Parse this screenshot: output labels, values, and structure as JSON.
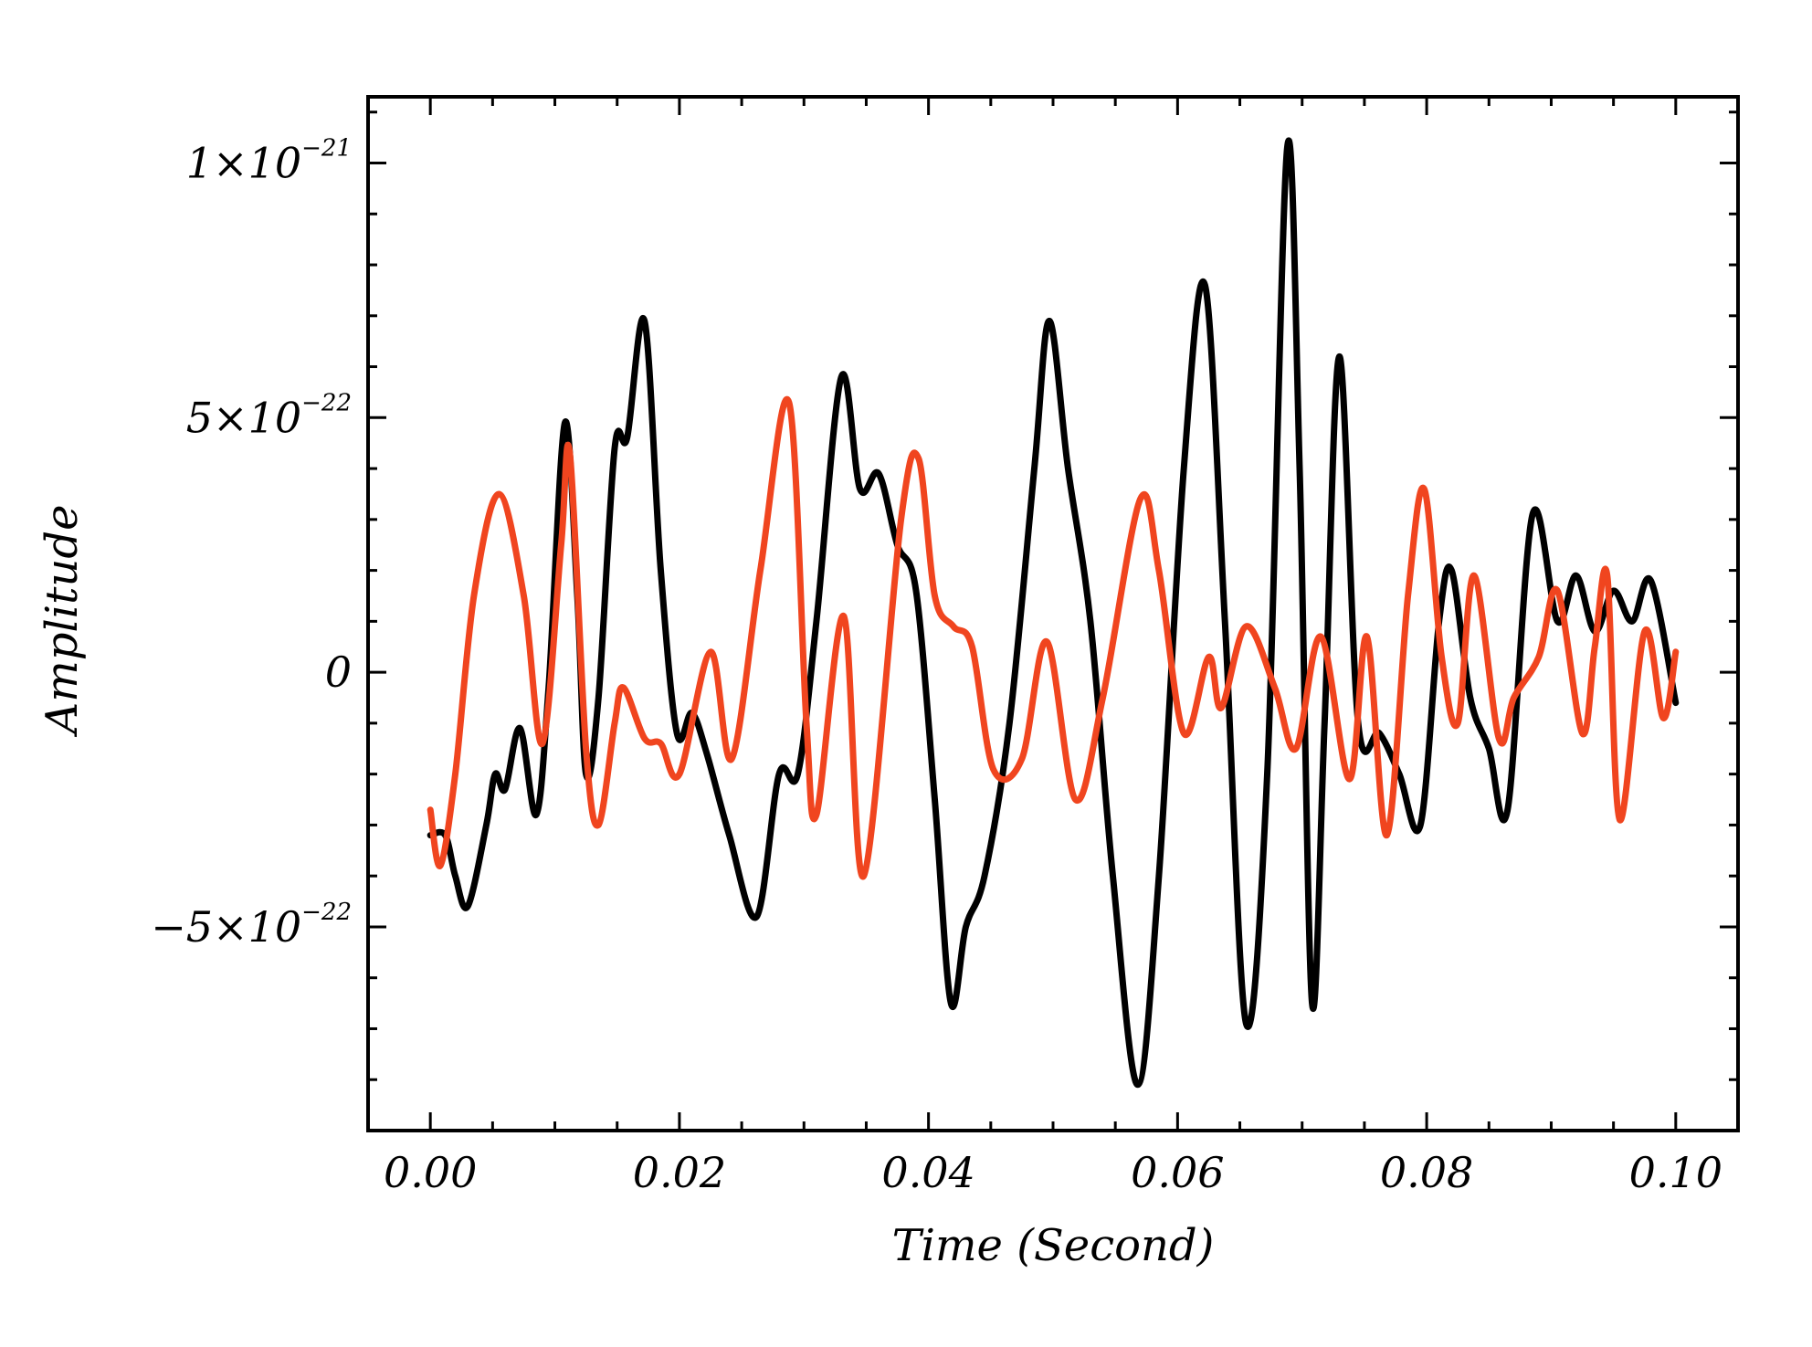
{
  "chart_data": {
    "type": "line",
    "title": "",
    "xlabel": "Time (Second)",
    "ylabel": "Amplitude",
    "xlim": [
      -0.005,
      0.105
    ],
    "ylim": [
      -9e-22,
      1.13e-21
    ],
    "x_ticks": [
      0.0,
      0.02,
      0.04,
      0.06,
      0.08,
      0.1
    ],
    "x_tick_labels": [
      "0.00",
      "0.02",
      "0.04",
      "0.06",
      "0.08",
      "0.10"
    ],
    "y_ticks": [
      {
        "value": 1e-21,
        "mantissa": "1×10",
        "exponent": "−21"
      },
      {
        "value": 5e-22,
        "mantissa": "5×10",
        "exponent": "−22"
      },
      {
        "value": 0,
        "mantissa": "0",
        "exponent": ""
      },
      {
        "value": -5e-22,
        "mantissa": "−5×10",
        "exponent": "−22"
      }
    ],
    "grid": false,
    "legend": "none",
    "x_unit_scale": 1e-22,
    "series": [
      {
        "color": "#000000",
        "points": [
          [
            0.0,
            -3.2
          ],
          [
            0.0012,
            -3.2
          ],
          [
            0.002,
            -4.0
          ],
          [
            0.003,
            -4.6
          ],
          [
            0.0045,
            -3.0
          ],
          [
            0.0052,
            -2.0
          ],
          [
            0.006,
            -2.3
          ],
          [
            0.0072,
            -1.1
          ],
          [
            0.0085,
            -2.8
          ],
          [
            0.0095,
            -0.3
          ],
          [
            0.0108,
            4.9
          ],
          [
            0.0118,
            1.5
          ],
          [
            0.0125,
            -2.0
          ],
          [
            0.0135,
            -0.5
          ],
          [
            0.0148,
            4.4
          ],
          [
            0.0158,
            4.6
          ],
          [
            0.0172,
            6.9
          ],
          [
            0.0185,
            2.0
          ],
          [
            0.0198,
            -1.2
          ],
          [
            0.021,
            -0.8
          ],
          [
            0.0222,
            -1.6
          ],
          [
            0.024,
            -3.2
          ],
          [
            0.0262,
            -4.8
          ],
          [
            0.028,
            -2.0
          ],
          [
            0.0295,
            -2.0
          ],
          [
            0.031,
            1.0
          ],
          [
            0.033,
            5.8
          ],
          [
            0.0345,
            3.6
          ],
          [
            0.036,
            3.9
          ],
          [
            0.0375,
            2.5
          ],
          [
            0.039,
            1.6
          ],
          [
            0.0405,
            -2.5
          ],
          [
            0.0418,
            -6.5
          ],
          [
            0.043,
            -5.0
          ],
          [
            0.0445,
            -4.0
          ],
          [
            0.0465,
            -1.0
          ],
          [
            0.0485,
            4.0
          ],
          [
            0.0497,
            6.9
          ],
          [
            0.0512,
            4.0
          ],
          [
            0.053,
            1.0
          ],
          [
            0.0548,
            -4.0
          ],
          [
            0.0568,
            -8.1
          ],
          [
            0.0585,
            -4.0
          ],
          [
            0.0605,
            4.0
          ],
          [
            0.0622,
            7.6
          ],
          [
            0.0638,
            1.0
          ],
          [
            0.0655,
            -6.9
          ],
          [
            0.0672,
            -2.0
          ],
          [
            0.0688,
            10.3
          ],
          [
            0.0698,
            4.0
          ],
          [
            0.0708,
            -6.5
          ],
          [
            0.0718,
            -1.0
          ],
          [
            0.073,
            6.2
          ],
          [
            0.0745,
            -1.0
          ],
          [
            0.0762,
            -1.2
          ],
          [
            0.0778,
            -2.0
          ],
          [
            0.0795,
            -3.0
          ],
          [
            0.081,
            1.0
          ],
          [
            0.082,
            2.0
          ],
          [
            0.0835,
            -0.5
          ],
          [
            0.085,
            -1.5
          ],
          [
            0.0865,
            -2.7
          ],
          [
            0.0885,
            3.1
          ],
          [
            0.0905,
            1.0
          ],
          [
            0.092,
            1.9
          ],
          [
            0.0935,
            0.8
          ],
          [
            0.095,
            1.6
          ],
          [
            0.0965,
            1.0
          ],
          [
            0.098,
            1.8
          ],
          [
            0.1,
            -0.6
          ]
        ]
      },
      {
        "color": "#f0451f",
        "points": [
          [
            0.0,
            -2.7
          ],
          [
            0.0008,
            -3.8
          ],
          [
            0.002,
            -2.0
          ],
          [
            0.0035,
            1.5
          ],
          [
            0.0055,
            3.5
          ],
          [
            0.0075,
            1.5
          ],
          [
            0.009,
            -1.4
          ],
          [
            0.0105,
            2.5
          ],
          [
            0.0112,
            4.3
          ],
          [
            0.0125,
            -1.5
          ],
          [
            0.0135,
            -3.0
          ],
          [
            0.0148,
            -1.0
          ],
          [
            0.0155,
            -0.3
          ],
          [
            0.0172,
            -1.3
          ],
          [
            0.0185,
            -1.4
          ],
          [
            0.02,
            -2.0
          ],
          [
            0.0225,
            0.4
          ],
          [
            0.0242,
            -1.7
          ],
          [
            0.0265,
            2.0
          ],
          [
            0.0288,
            5.3
          ],
          [
            0.0302,
            -1.0
          ],
          [
            0.031,
            -2.8
          ],
          [
            0.0332,
            1.1
          ],
          [
            0.0348,
            -4.0
          ],
          [
            0.0378,
            3.0
          ],
          [
            0.0392,
            4.2
          ],
          [
            0.0405,
            1.5
          ],
          [
            0.042,
            0.9
          ],
          [
            0.0435,
            0.5
          ],
          [
            0.0452,
            -1.9
          ],
          [
            0.0475,
            -1.7
          ],
          [
            0.0495,
            0.6
          ],
          [
            0.0518,
            -2.5
          ],
          [
            0.054,
            -0.5
          ],
          [
            0.057,
            3.4
          ],
          [
            0.0585,
            2.0
          ],
          [
            0.0605,
            -1.2
          ],
          [
            0.0625,
            0.3
          ],
          [
            0.0635,
            -0.7
          ],
          [
            0.0655,
            0.9
          ],
          [
            0.0678,
            -0.3
          ],
          [
            0.0695,
            -1.5
          ],
          [
            0.0715,
            0.7
          ],
          [
            0.0738,
            -2.1
          ],
          [
            0.0752,
            0.7
          ],
          [
            0.0768,
            -3.2
          ],
          [
            0.0785,
            1.5
          ],
          [
            0.0798,
            3.6
          ],
          [
            0.0812,
            0.3
          ],
          [
            0.0825,
            -1.0
          ],
          [
            0.0838,
            1.9
          ],
          [
            0.0858,
            -1.3
          ],
          [
            0.087,
            -0.5
          ],
          [
            0.089,
            0.3
          ],
          [
            0.0905,
            1.6
          ],
          [
            0.0925,
            -1.2
          ],
          [
            0.0935,
            0.5
          ],
          [
            0.0945,
            1.9
          ],
          [
            0.0955,
            -2.9
          ],
          [
            0.0975,
            0.8
          ],
          [
            0.099,
            -0.9
          ],
          [
            0.1,
            0.4
          ]
        ]
      }
    ]
  }
}
